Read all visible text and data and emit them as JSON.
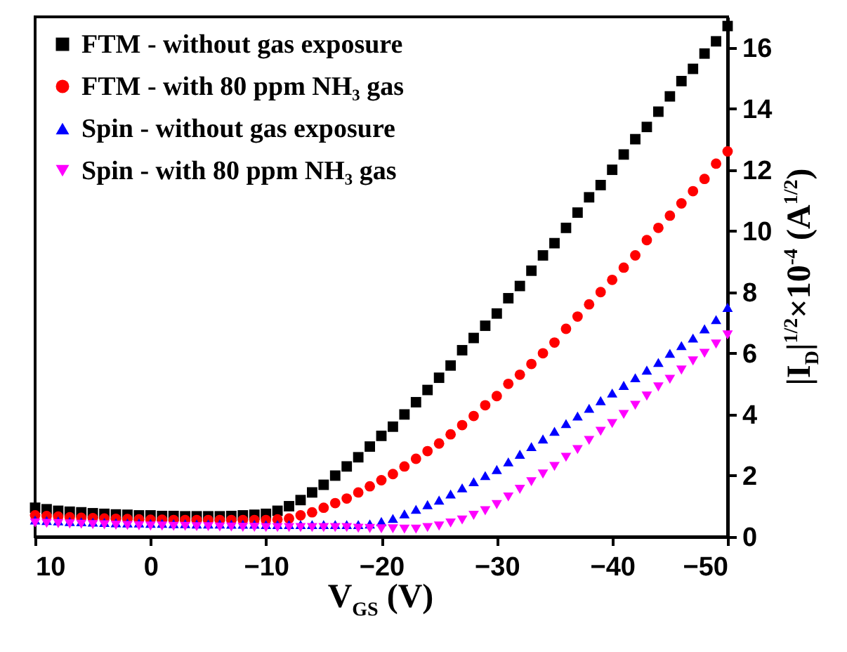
{
  "chart_data": {
    "type": "scatter",
    "xlabel": "V$_{GS}$ (V)",
    "ylabel": "|I$_{D}$|$^{1/2}$×10$^{-4}$ (A$^{1/2}$)",
    "x": [
      10,
      9,
      8,
      7,
      6,
      5,
      4,
      3,
      2,
      1,
      0,
      -1,
      -2,
      -3,
      -4,
      -5,
      -6,
      -7,
      -8,
      -9,
      -10,
      -11,
      -12,
      -13,
      -14,
      -15,
      -16,
      -17,
      -18,
      -19,
      -20,
      -21,
      -22,
      -23,
      -24,
      -25,
      -26,
      -27,
      -28,
      -29,
      -30,
      -31,
      -32,
      -33,
      -34,
      -35,
      -36,
      -37,
      -38,
      -39,
      -40,
      -41,
      -42,
      -43,
      -44,
      -45,
      -46,
      -47,
      -48,
      -49,
      -50
    ],
    "xlim": [
      10,
      -50
    ],
    "xticks": [
      10,
      0,
      -10,
      -20,
      -30,
      -40,
      -50
    ],
    "ylim": [
      0,
      17
    ],
    "yticks": [
      0,
      2,
      4,
      6,
      8,
      10,
      12,
      14,
      16
    ],
    "grid": false,
    "legend": "top left",
    "series": [
      {
        "name": "FTM - without gas exposure",
        "color": "#000000",
        "marker": "square",
        "values": [
          0.95,
          0.9,
          0.85,
          0.82,
          0.8,
          0.77,
          0.75,
          0.73,
          0.72,
          0.7,
          0.7,
          0.68,
          0.68,
          0.67,
          0.67,
          0.67,
          0.67,
          0.68,
          0.7,
          0.72,
          0.75,
          0.85,
          1.0,
          1.2,
          1.45,
          1.7,
          2.0,
          2.3,
          2.6,
          2.95,
          3.3,
          3.6,
          4.0,
          4.4,
          4.8,
          5.2,
          5.6,
          6.1,
          6.5,
          6.9,
          7.3,
          7.8,
          8.2,
          8.7,
          9.2,
          9.6,
          10.1,
          10.6,
          11.1,
          11.5,
          12.0,
          12.5,
          13.0,
          13.4,
          13.9,
          14.4,
          14.9,
          15.3,
          15.8,
          16.2,
          16.7
        ]
      },
      {
        "name": "FTM - with 80 ppm NH₃ gas",
        "color": "#ff0000",
        "marker": "circle",
        "values": [
          0.7,
          0.68,
          0.66,
          0.64,
          0.62,
          0.61,
          0.6,
          0.59,
          0.58,
          0.57,
          0.56,
          0.56,
          0.55,
          0.55,
          0.55,
          0.55,
          0.55,
          0.55,
          0.55,
          0.55,
          0.55,
          0.57,
          0.6,
          0.7,
          0.8,
          0.95,
          1.1,
          1.25,
          1.45,
          1.65,
          1.85,
          2.05,
          2.3,
          2.55,
          2.8,
          3.05,
          3.35,
          3.65,
          3.95,
          4.3,
          4.6,
          5.0,
          5.3,
          5.65,
          6.0,
          6.35,
          6.8,
          7.2,
          7.6,
          8.0,
          8.4,
          8.8,
          9.2,
          9.7,
          10.1,
          10.5,
          10.9,
          11.3,
          11.7,
          12.2,
          12.6
        ]
      },
      {
        "name": "Spin - without gas exposure",
        "color": "#0000ff",
        "marker": "triangle-up",
        "values": [
          0.55,
          0.53,
          0.52,
          0.5,
          0.49,
          0.48,
          0.47,
          0.46,
          0.45,
          0.45,
          0.44,
          0.44,
          0.43,
          0.43,
          0.42,
          0.42,
          0.42,
          0.41,
          0.41,
          0.41,
          0.4,
          0.4,
          0.4,
          0.4,
          0.4,
          0.4,
          0.4,
          0.4,
          0.4,
          0.42,
          0.5,
          0.6,
          0.75,
          0.9,
          1.05,
          1.2,
          1.4,
          1.6,
          1.8,
          2.0,
          2.2,
          2.45,
          2.7,
          2.95,
          3.2,
          3.45,
          3.7,
          3.95,
          4.2,
          4.45,
          4.7,
          4.95,
          5.2,
          5.45,
          5.7,
          6.0,
          6.25,
          6.5,
          6.8,
          7.1,
          7.5
        ]
      },
      {
        "name": "Spin - with 80 ppm NH₃ gas",
        "color": "#ff00ff",
        "marker": "triangle-down",
        "values": [
          0.45,
          0.44,
          0.43,
          0.42,
          0.41,
          0.4,
          0.39,
          0.38,
          0.37,
          0.36,
          0.35,
          0.35,
          0.34,
          0.34,
          0.33,
          0.33,
          0.32,
          0.32,
          0.31,
          0.31,
          0.3,
          0.3,
          0.3,
          0.3,
          0.3,
          0.3,
          0.3,
          0.3,
          0.28,
          0.27,
          0.26,
          0.26,
          0.25,
          0.25,
          0.3,
          0.35,
          0.45,
          0.55,
          0.7,
          0.85,
          1.05,
          1.3,
          1.55,
          1.8,
          2.05,
          2.3,
          2.6,
          2.85,
          3.15,
          3.45,
          3.7,
          4.0,
          4.3,
          4.6,
          4.9,
          5.15,
          5.45,
          5.75,
          6.0,
          6.3,
          6.6
        ]
      }
    ]
  }
}
